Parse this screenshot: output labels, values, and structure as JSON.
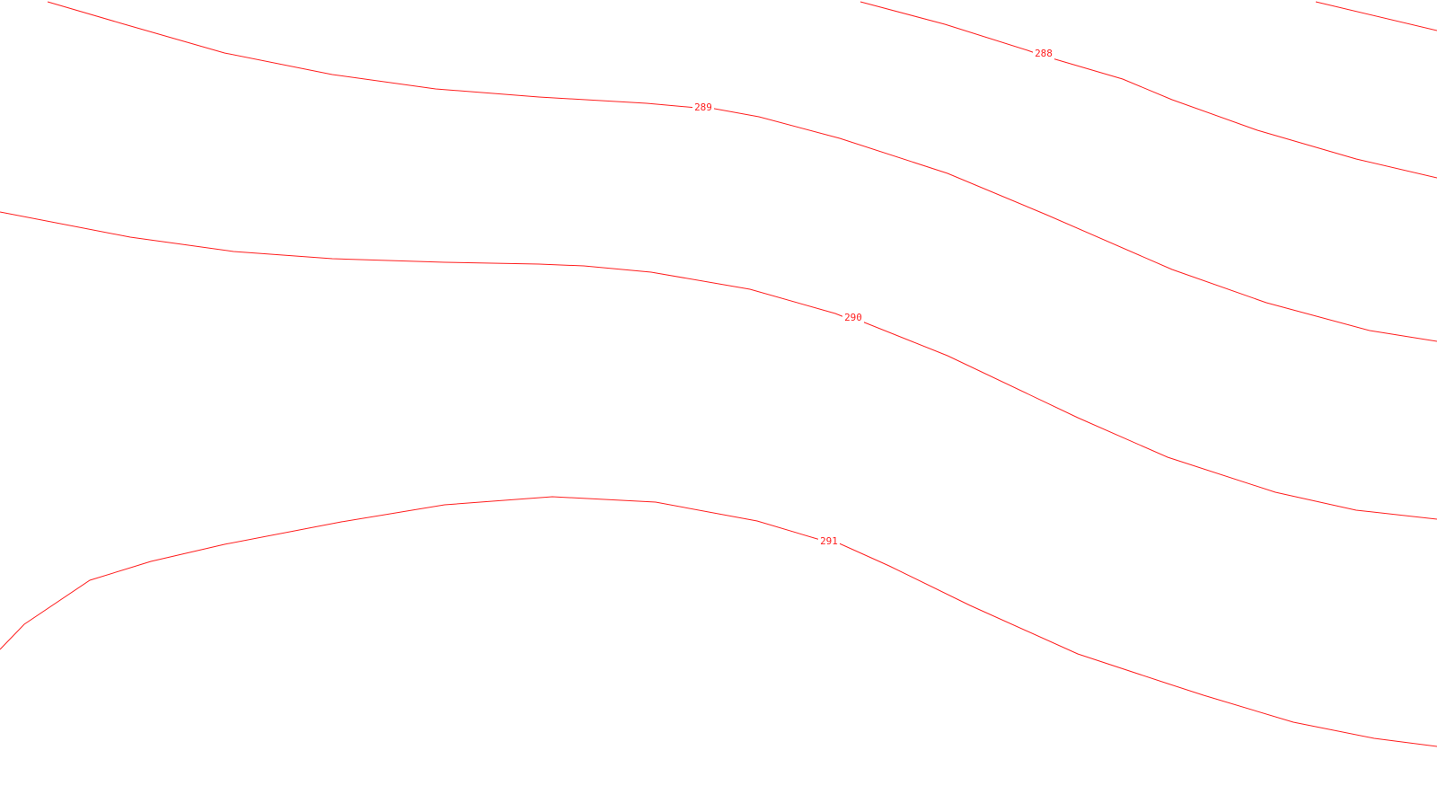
{
  "map": {
    "line_color": "#ff2020",
    "background": "#ffffff",
    "contours": [
      {
        "id": "contour-288-left",
        "value": "",
        "label": ""
      },
      {
        "id": "contour-288",
        "value": 288,
        "label": "288"
      },
      {
        "id": "contour-289",
        "value": 289,
        "label": "289"
      },
      {
        "id": "contour-290",
        "value": 290,
        "label": "290"
      },
      {
        "id": "contour-291",
        "value": 291,
        "label": "291"
      }
    ]
  }
}
